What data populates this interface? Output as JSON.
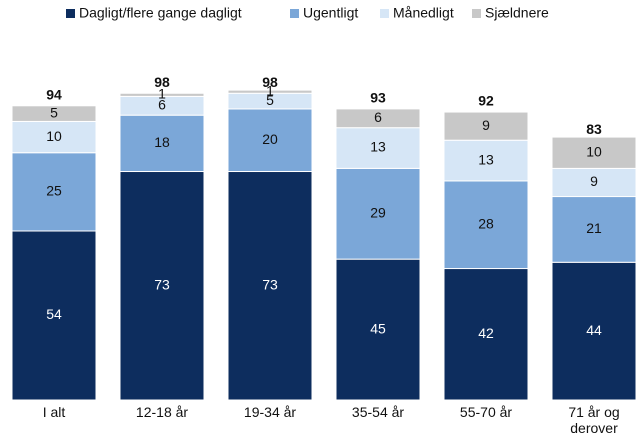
{
  "chart_data": {
    "type": "stacked_bar",
    "categories": [
      "I alt",
      "12-18 år",
      "19-34 år",
      "35-54 år",
      "55-70 år",
      "71 år og derover"
    ],
    "series": [
      {
        "name": "Dagligt/flere gange dagligt",
        "color": "#0d2d5e",
        "values": [
          54,
          73,
          73,
          45,
          42,
          44
        ]
      },
      {
        "name": "Ugentligt",
        "color": "#7ba7d8",
        "values": [
          25,
          18,
          20,
          29,
          28,
          21
        ]
      },
      {
        "name": "Månedligt",
        "color": "#d6e6f6",
        "values": [
          10,
          6,
          5,
          13,
          13,
          9
        ]
      },
      {
        "name": "Sjældnere",
        "color": "#c8c8c8",
        "values": [
          5,
          1,
          1,
          6,
          9,
          10
        ]
      }
    ],
    "totals": [
      94,
      98,
      98,
      93,
      92,
      83
    ],
    "legend": "top"
  }
}
